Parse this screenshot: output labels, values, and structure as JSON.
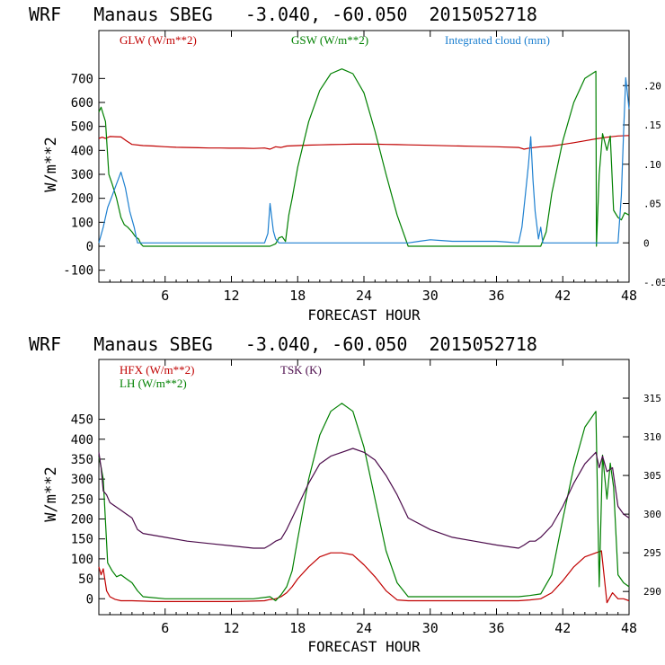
{
  "chart_data": [
    {
      "type": "line",
      "title": "WRF   Manaus SBEG   -3.040, -60.050  2015052718",
      "xlabel": "FORECAST HOUR",
      "ylabel": "W/m**2",
      "xlim": [
        0,
        48
      ],
      "ylim": [
        -150,
        900
      ],
      "y2lim": [
        -0.05,
        0.27
      ],
      "xticks": [
        6,
        12,
        18,
        24,
        30,
        36,
        42,
        48
      ],
      "yticks": [
        -100,
        0,
        100,
        200,
        300,
        400,
        500,
        600,
        700
      ],
      "yticks_labels": [
        "-100",
        "0",
        "100",
        "200",
        "300",
        "400",
        "500",
        "600",
        "700"
      ],
      "y2ticks": [
        -0.05,
        0,
        0.05,
        0.1,
        0.15,
        0.2
      ],
      "y2ticks_labels": [
        "-.05",
        "0",
        ".05",
        ".10",
        ".15",
        ".20"
      ],
      "series": [
        {
          "name": "GLW (W/m**2)",
          "axis": "left",
          "color": "#c00000",
          "x": [
            0,
            0.3,
            0.6,
            1,
            2,
            2.5,
            3,
            4,
            5,
            6,
            7,
            8,
            9,
            10,
            11,
            12,
            13,
            14,
            15,
            15.5,
            16,
            16.5,
            17,
            18,
            19,
            20,
            21,
            22,
            23,
            24,
            25,
            26,
            27,
            28,
            30,
            32,
            34,
            36,
            38,
            38.5,
            39,
            40,
            41,
            42,
            43,
            44,
            45,
            46,
            47,
            48
          ],
          "y": [
            450,
            455,
            450,
            458,
            456,
            440,
            425,
            420,
            418,
            415,
            413,
            412,
            411,
            410,
            410,
            409,
            409,
            408,
            410,
            405,
            415,
            412,
            418,
            420,
            422,
            423,
            424,
            425,
            426,
            426,
            426,
            425,
            424,
            423,
            421,
            419,
            417,
            415,
            412,
            405,
            410,
            415,
            418,
            425,
            432,
            440,
            448,
            455,
            460,
            462
          ]
        },
        {
          "name": "GSW (W/m**2)",
          "axis": "left",
          "color": "#008000",
          "x": [
            0,
            0.2,
            0.4,
            0.6,
            0.9,
            1.2,
            1.6,
            2.0,
            2.3,
            2.6,
            3.0,
            3.3,
            3.6,
            3.8,
            4.0,
            15.5,
            16,
            16.3,
            16.6,
            16.9,
            17.2,
            17.5,
            18,
            19,
            20,
            21,
            22,
            23,
            24,
            25,
            26,
            27,
            28,
            40,
            40.5,
            41,
            42,
            43,
            44,
            45,
            45.05,
            45.3,
            45.6,
            46,
            46.3,
            46.6,
            47,
            47.3,
            47.6,
            48
          ],
          "y": [
            560,
            580,
            550,
            520,
            300,
            260,
            200,
            120,
            90,
            80,
            60,
            40,
            30,
            10,
            0,
            0,
            10,
            35,
            40,
            20,
            130,
            200,
            330,
            520,
            650,
            720,
            740,
            720,
            640,
            480,
            300,
            130,
            0,
            0,
            60,
            220,
            440,
            600,
            700,
            730,
            0,
            300,
            470,
            400,
            460,
            150,
            120,
            110,
            140,
            130
          ]
        },
        {
          "name": "Integrated cloud (mm)",
          "axis": "right",
          "color": "#1e80d0",
          "x": [
            0,
            0.4,
            0.8,
            1.2,
            1.6,
            2.0,
            2.4,
            2.8,
            3.2,
            3.5,
            15.0,
            15.3,
            15.5,
            15.8,
            16.0,
            16.3,
            28,
            29,
            30,
            31,
            32,
            34,
            36,
            37,
            38,
            38.3,
            38.6,
            38.9,
            39.1,
            39.3,
            39.5,
            39.8,
            40,
            40.2,
            47,
            47.3,
            47.5,
            47.7,
            47.85,
            48
          ],
          "y": [
            0,
            0.02,
            0.045,
            0.06,
            0.075,
            0.09,
            0.07,
            0.04,
            0.02,
            0,
            0,
            0.012,
            0.05,
            0.015,
            0.005,
            0,
            0,
            0.002,
            0.004,
            0.003,
            0.002,
            0.002,
            0.002,
            0.001,
            0,
            0.02,
            0.06,
            0.1,
            0.135,
            0.08,
            0.04,
            0.005,
            0.02,
            0,
            0,
            0.06,
            0.14,
            0.21,
            0.19,
            0.17
          ]
        }
      ]
    },
    {
      "type": "line",
      "title": "WRF   Manaus SBEG   -3.040, -60.050  2015052718",
      "xlabel": "FORECAST HOUR",
      "ylabel": "W/m**2",
      "xlim": [
        0,
        48
      ],
      "ylim": [
        -40,
        600
      ],
      "y2lim": [
        287,
        320
      ],
      "xticks": [
        6,
        12,
        18,
        24,
        30,
        36,
        42,
        48
      ],
      "yticks": [
        0,
        50,
        100,
        150,
        200,
        250,
        300,
        350,
        400,
        450
      ],
      "yticks_labels": [
        "0",
        "50",
        "100",
        "150",
        "200",
        "250",
        "300",
        "350",
        "400",
        "450"
      ],
      "y2ticks": [
        290,
        295,
        300,
        305,
        310,
        315
      ],
      "y2ticks_labels": [
        "290",
        "295",
        "300",
        "305",
        "310",
        "315"
      ],
      "series": [
        {
          "name": "HFX (W/m**2)",
          "axis": "left",
          "color": "#c00000",
          "x": [
            0,
            0.2,
            0.4,
            0.7,
            1.0,
            1.5,
            2,
            3,
            4,
            5,
            6,
            8,
            10,
            12,
            14,
            15,
            15.5,
            16,
            16.5,
            17,
            17.5,
            18,
            19,
            20,
            21,
            22,
            23,
            24,
            25,
            26,
            27,
            28,
            30,
            32,
            34,
            36,
            38,
            39,
            40,
            41,
            42,
            43,
            44,
            45,
            45.5,
            46,
            46.5,
            47,
            47.5,
            48
          ],
          "y": [
            80,
            60,
            75,
            20,
            5,
            -2,
            -5,
            -5,
            -6,
            -7,
            -7,
            -7,
            -7,
            -7,
            -6,
            -5,
            -2,
            0,
            5,
            15,
            30,
            50,
            80,
            105,
            115,
            115,
            110,
            85,
            55,
            20,
            -3,
            -5,
            -5,
            -5,
            -5,
            -5,
            -5,
            -3,
            0,
            15,
            45,
            80,
            105,
            115,
            120,
            -10,
            15,
            0,
            0,
            -5
          ]
        },
        {
          "name": "LH (W/m**2)",
          "axis": "left",
          "color": "#008000",
          "x": [
            0,
            0.2,
            0.4,
            0.8,
            1.2,
            1.6,
            2.0,
            2.5,
            3.0,
            3.5,
            4.0,
            6,
            8,
            10,
            12,
            14,
            15.5,
            16,
            16.5,
            17,
            17.5,
            18,
            19,
            20,
            21,
            22,
            23,
            24,
            25,
            26,
            27,
            28,
            30,
            32,
            34,
            36,
            38,
            39,
            40,
            41,
            42,
            43,
            44,
            45,
            45.3,
            45.6,
            46,
            46.3,
            46.6,
            47,
            47.5,
            48
          ],
          "y": [
            355,
            330,
            300,
            90,
            70,
            55,
            60,
            50,
            40,
            20,
            5,
            0,
            0,
            0,
            0,
            0,
            5,
            -5,
            10,
            30,
            70,
            150,
            300,
            410,
            470,
            490,
            470,
            380,
            250,
            120,
            40,
            5,
            5,
            5,
            5,
            5,
            5,
            8,
            12,
            60,
            200,
            330,
            430,
            470,
            30,
            360,
            250,
            340,
            280,
            60,
            40,
            30
          ]
        },
        {
          "name": "TSK (K)",
          "axis": "right",
          "color": "#4b0b4b",
          "x": [
            0,
            0.2,
            0.4,
            0.7,
            1.0,
            1.5,
            2.0,
            2.5,
            3.0,
            3.5,
            4.0,
            6,
            8,
            10,
            12,
            14,
            15,
            15.5,
            16,
            16.5,
            17,
            18,
            19,
            20,
            21,
            22,
            23,
            24,
            25,
            26,
            27,
            28,
            30,
            32,
            34,
            36,
            38,
            38.5,
            39,
            39.5,
            40,
            41,
            42,
            43,
            44,
            45,
            45.3,
            45.6,
            46,
            46.5,
            47,
            47.5,
            48
          ],
          "y": [
            308,
            306,
            303,
            302.5,
            301.5,
            301,
            300.5,
            300,
            299.5,
            298,
            297.5,
            297,
            296.5,
            296.2,
            295.9,
            295.6,
            295.6,
            296,
            296.5,
            296.8,
            298,
            301,
            304,
            306.5,
            307.5,
            308,
            308.5,
            308,
            307,
            305,
            302.5,
            299.5,
            298,
            297,
            296.5,
            296,
            295.6,
            296,
            296.5,
            296.5,
            297,
            298.5,
            301,
            304,
            306.5,
            308,
            306,
            307.5,
            305.5,
            306,
            301,
            300,
            299.5
          ]
        }
      ]
    }
  ]
}
